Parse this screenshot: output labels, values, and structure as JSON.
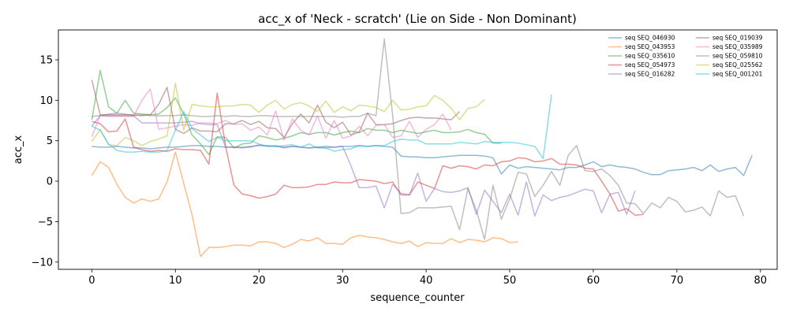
{
  "chart_data": {
    "type": "line",
    "title": "acc_x of 'Neck - scratch' (Lie on Side - Non Dominant)",
    "xlabel": "sequence_counter",
    "ylabel": "acc_x",
    "xlim": [
      -4,
      82
    ],
    "ylim": [
      -10.9,
      18.7
    ],
    "xticks": [
      0,
      10,
      20,
      30,
      40,
      50,
      60,
      70,
      80
    ],
    "yticks": [
      -10,
      -5,
      0,
      5,
      10,
      15
    ],
    "grid": false,
    "legend": "top-right",
    "series": [
      {
        "name": "seq SEQ_046930",
        "color": "#1f77b4",
        "values": [
          4.3,
          4.2,
          4.2,
          4.3,
          4.2,
          4.1,
          4.1,
          4,
          4.1,
          4.2,
          4.2,
          4.3,
          4.4,
          4.4,
          4.3,
          4.3,
          4.2,
          4.2,
          4.2,
          4.3,
          4.4,
          4.4,
          4.3,
          4.2,
          4.3,
          4.2,
          4.1,
          4.2,
          4.3,
          4.2,
          4.3,
          4.3,
          4.4,
          4.3,
          4.4,
          4.3,
          4.2,
          3.1,
          3,
          3,
          2.9,
          2.9,
          3,
          3.1,
          3.2,
          3.2,
          3.2,
          3.1,
          2.9,
          0.9,
          2,
          1.6,
          1.8,
          1.7,
          1.6,
          1.5,
          1.4,
          1.7,
          1.7,
          2,
          2.4,
          1.8,
          2,
          1.8,
          1.7,
          1.5,
          1.1,
          0.8,
          0.8,
          1.3,
          1.4,
          1.5,
          1.7,
          1.3,
          2,
          1.2,
          1.5,
          1.7,
          0.7,
          3.2
        ]
      },
      {
        "name": "seq SEQ_043953",
        "color": "#ff7f0e",
        "values": [
          0.7,
          2.4,
          1.7,
          -0.4,
          -2,
          -2.7,
          -2.2,
          -2.5,
          -2.2,
          -0.1,
          3.6,
          -0.3,
          -4.2,
          -9.3,
          -8.2,
          -8.2,
          -8.1,
          -7.9,
          -7.9,
          -8,
          -7.5,
          -7.5,
          -7.7,
          -8.2,
          -7.8,
          -7.2,
          -7.4,
          -7,
          -7.7,
          -7.7,
          -7.8,
          -7,
          -6.7,
          -6.9,
          -7,
          -7.2,
          -7.5,
          -7.7,
          -7.4,
          -8.1,
          -7.6,
          -7.7,
          -7.7,
          -7.1,
          -7.6,
          -7.2,
          -7.3,
          -7.5,
          -7,
          -7.1,
          -7.6,
          -7.5
        ]
      },
      {
        "name": "seq SEQ_035610",
        "color": "#2ca02c",
        "values": [
          7.6,
          13.7,
          9.2,
          8.4,
          10,
          8.4,
          8.3,
          8.2,
          8.3,
          9.1,
          10.3,
          8.3,
          5.7,
          4.6,
          3.3,
          5.5,
          5.4,
          4.1,
          4.6,
          4.7,
          5.6,
          5.4,
          5.1,
          5.3,
          5.6,
          6,
          5.8,
          6,
          6,
          5.7,
          6,
          6.2,
          6,
          6.5,
          6.3,
          6.3,
          6,
          6.3,
          6.1,
          5.9,
          6.1,
          6.3,
          6,
          6,
          6.1,
          6.4,
          6,
          5.8,
          4.7,
          4.7
        ]
      },
      {
        "name": "seq SEQ_054973",
        "color": "#d62728",
        "values": [
          7.4,
          7.1,
          6.1,
          6.2,
          7.7,
          4.2,
          3.9,
          3.7,
          3.8,
          3.7,
          4,
          3.9,
          3.9,
          3.8,
          2.1,
          10.9,
          4.3,
          -0.5,
          -1.6,
          -1.8,
          -2.1,
          -1.9,
          -1.6,
          -0.5,
          -0.8,
          -0.8,
          -0.7,
          -0.4,
          -0.4,
          -0.1,
          -0.2,
          -0.2,
          0.2,
          0.1,
          0,
          -0.3,
          -0.1,
          -1.7,
          -1.7,
          -0.1,
          -0.5,
          -0.9,
          1.9,
          1.6,
          1.9,
          1.8,
          1.5,
          2,
          1.9,
          2.4,
          2.5,
          2.9,
          2.8,
          2.4,
          2.5,
          2.8,
          2.1,
          2.1,
          2,
          1.6,
          1.5,
          0,
          -1.6,
          -3.7,
          -3.4,
          -4.2,
          -4.1
        ]
      },
      {
        "name": "seq SEQ_016282",
        "color": "#9467bd",
        "values": [
          6.8,
          8.1,
          8.3,
          8.4,
          8.3,
          8.1,
          7.2,
          7.2,
          7.2,
          7.2,
          7.2,
          7.3,
          7.4,
          7.1,
          7,
          7,
          4.2,
          4.2,
          4.1,
          4.2,
          4.5,
          4.3,
          4.4,
          4.1,
          4.3,
          4.2,
          4.1,
          4.2,
          4.1,
          4.2,
          4.3,
          1.9,
          -0.8,
          -0.8,
          -0.6,
          -3.3,
          -0.4,
          -1.5,
          -1.7,
          1,
          -2.5,
          -0.9,
          -1.3,
          -1.4,
          -1.2,
          -0.8,
          -4.1,
          -1.1,
          -2.5,
          -3.9,
          -1.6,
          -4.2,
          -0.1,
          -4.3,
          -1.7,
          -2.4,
          -2,
          -1.8,
          -1.4,
          -1,
          -1.2,
          -3.9,
          -1.6,
          -1.4,
          -4.1,
          -1.2
        ]
      },
      {
        "name": "seq SEQ_019039",
        "color": "#8c564b",
        "values": [
          12.5,
          8.2,
          8.2,
          8.2,
          8.2,
          8.2,
          8.1,
          8.2,
          9.5,
          11.6,
          6.4,
          5.9,
          6.6,
          6.2,
          6.2,
          6.1,
          7.1,
          7.1,
          7.5,
          7,
          7.4,
          6.6,
          6.5,
          5.4,
          7.1,
          8.3,
          7.2,
          9.4,
          7.3,
          6.6,
          7.3,
          5.7,
          6.1,
          8.4,
          7,
          7,
          7.1,
          7.5,
          7.8,
          7.9,
          7.8,
          7.8,
          7.7,
          7.6,
          8.6
        ]
      },
      {
        "name": "seq SEQ_035989",
        "color": "#e377c2",
        "values": [
          5.5,
          8.1,
          8,
          8,
          8,
          8,
          10,
          11.4,
          6.4,
          6.6,
          6.8,
          7,
          6.9,
          7.2,
          7.2,
          7.1,
          7.5,
          7,
          7.1,
          6.3,
          6.7,
          5.7,
          8.7,
          5.1,
          7.7,
          6.3,
          5.7,
          8.1,
          5.3,
          7.5,
          5.3,
          5.6,
          6.8,
          5.6,
          6.9,
          7,
          5.4,
          5.6,
          7.4,
          5.4,
          6.4,
          7,
          8.3,
          6.3
        ]
      },
      {
        "name": "seq SEQ_059810",
        "color": "#7f7f7f",
        "values": [
          8,
          8.1,
          8.1,
          8.1,
          8.1,
          8.1,
          8.2,
          8.1,
          8.1,
          8.1,
          8.1,
          8.2,
          8.1,
          8,
          8,
          8.1,
          8,
          8.1,
          8,
          8,
          8.1,
          8.1,
          8,
          8,
          8,
          8,
          8,
          8,
          8,
          8,
          7.9,
          8,
          8,
          8.4,
          8.1,
          17.6,
          8.1,
          -4,
          -3.9,
          -3.3,
          -3.3,
          -3.3,
          -3.2,
          -3.1,
          -6,
          -0.9,
          -3.6,
          -7.2,
          -0.5,
          -4.7,
          -2.2,
          1.1,
          0.9,
          -1.9,
          -0.5,
          1.2,
          -0.5,
          3.2,
          4.4,
          1.3,
          1.2,
          1.5,
          0.7,
          -0.5,
          -2.7,
          -2.8,
          -4,
          -2.7,
          -3.3,
          -2,
          -2.5,
          -3.8,
          -3.6,
          -3.2,
          -4.3,
          -1.2,
          -2,
          -1.8,
          -4.3
        ]
      },
      {
        "name": "seq SEQ_025562",
        "color": "#bcbd22",
        "values": [
          4.9,
          6.4,
          4.5,
          4.4,
          5.4,
          5,
          4.4,
          4.9,
          5.2,
          5.6,
          12.1,
          6.3,
          9.5,
          9.3,
          9.2,
          9.2,
          9.3,
          9.3,
          9.5,
          9.4,
          8.5,
          9.4,
          10,
          8.9,
          9.5,
          9.7,
          9.3,
          8.6,
          9.9,
          8.5,
          9.2,
          8.7,
          9.4,
          9.3,
          9.1,
          8.6,
          10,
          8.8,
          8.9,
          9.2,
          9.3,
          10.6,
          10,
          9,
          7.6,
          9,
          9.2,
          10.1
        ]
      },
      {
        "name": "seq SEQ_001201",
        "color": "#17becf",
        "values": [
          6.8,
          6.3,
          4.6,
          3.8,
          3.6,
          3.6,
          3.7,
          3.6,
          3.6,
          3.8,
          6.3,
          8.6,
          6.5,
          5.7,
          4.9,
          5.4,
          5,
          5,
          5,
          5,
          4.6,
          4.3,
          4.3,
          4.4,
          4.5,
          4.2,
          4.6,
          4.1,
          4.1,
          3.7,
          3.9,
          4,
          4.4,
          4.3,
          4.4,
          4.4,
          4.9,
          5.2,
          5.1,
          5.1,
          4.6,
          4.6,
          4.6,
          4.6,
          4.8,
          4.7,
          4.6,
          4.9,
          4.8,
          4.8,
          4.8,
          4.7,
          4.5,
          4.3,
          2.8,
          10.7
        ]
      }
    ]
  }
}
